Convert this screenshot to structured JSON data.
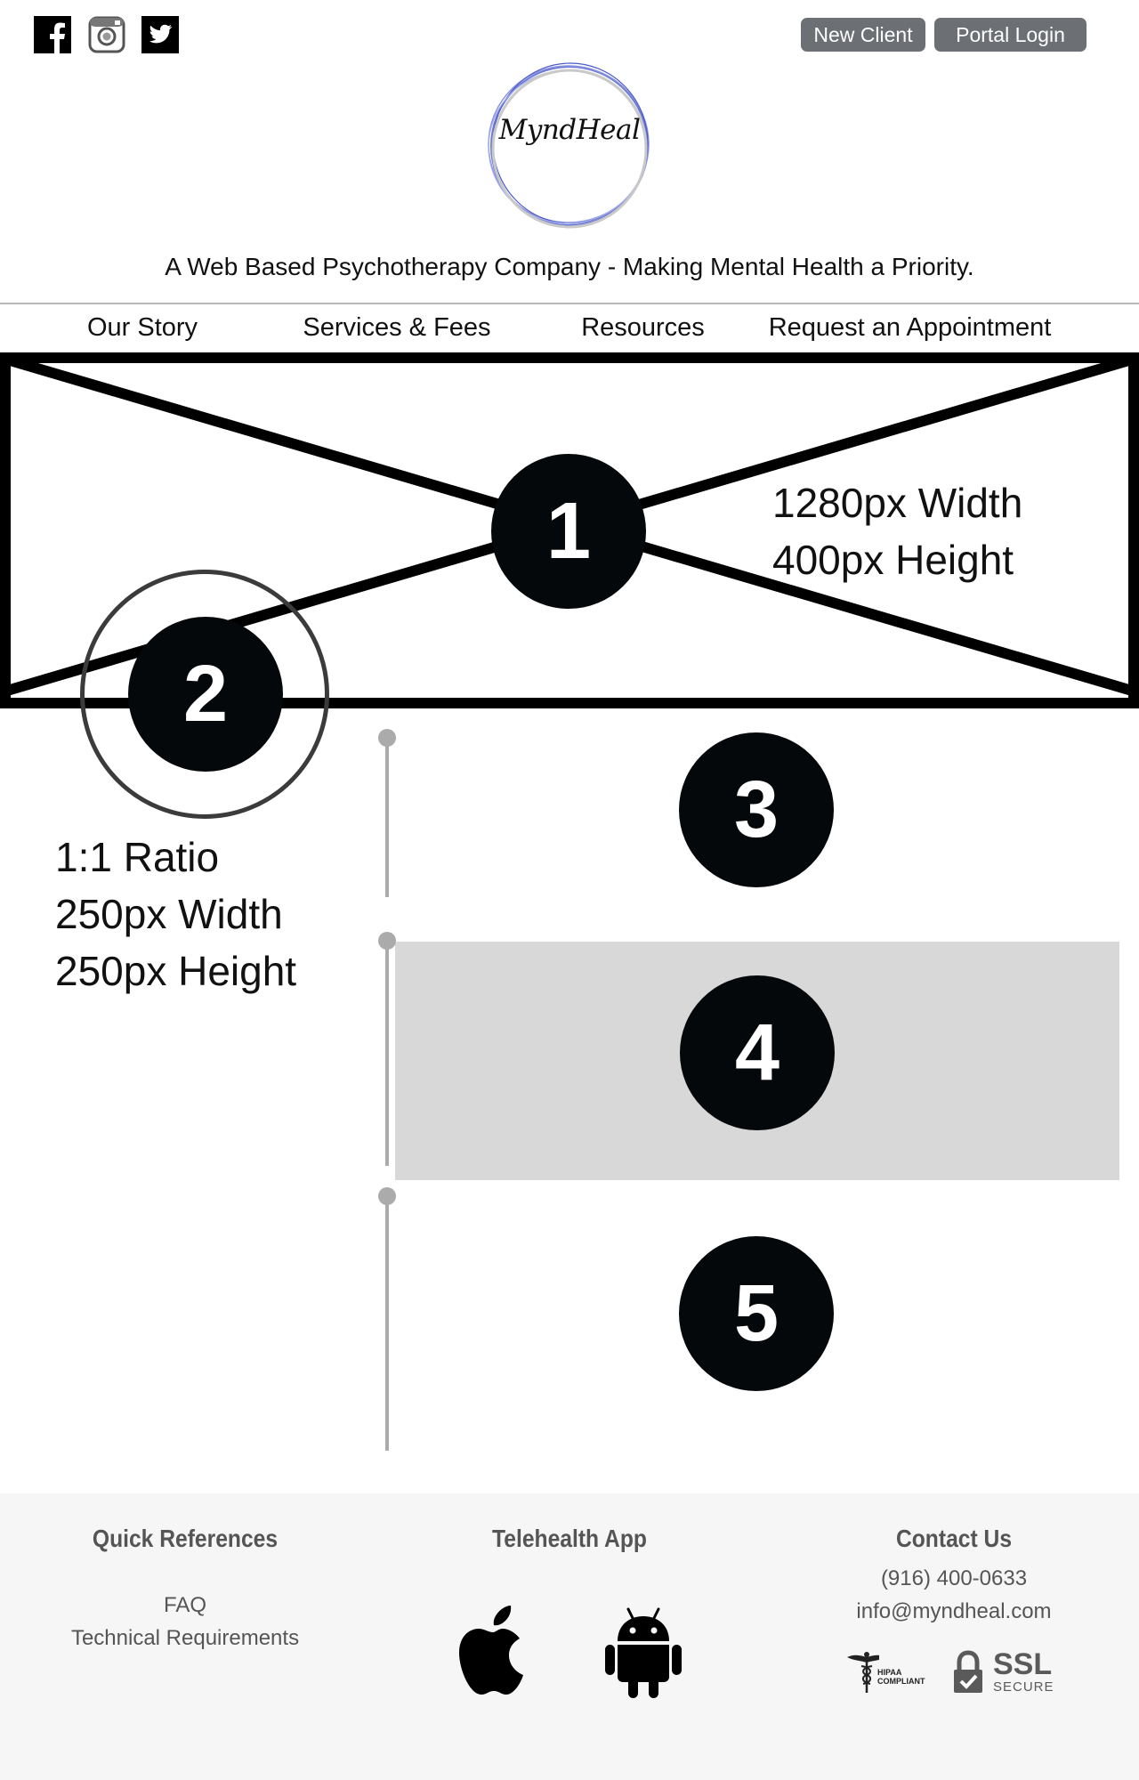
{
  "header": {
    "social": [
      {
        "name": "facebook-icon"
      },
      {
        "name": "instagram-icon"
      },
      {
        "name": "twitter-icon"
      }
    ],
    "new_client_label": "New Client",
    "portal_login_label": "Portal Login",
    "logo_text": "MyndHeal",
    "tagline": "A Web Based Psychotherapy Company - Making Mental Health a Priority."
  },
  "nav": {
    "items": [
      "Our Story",
      "Services & Fees",
      "Resources",
      "Request an Appointment"
    ]
  },
  "hero": {
    "badge": "1",
    "spec_width": "1280px Width",
    "spec_height": "400px Height"
  },
  "profile": {
    "badge": "2",
    "spec_ratio": "1:1 Ratio",
    "spec_width": "250px Width",
    "spec_height": "250px Height"
  },
  "sections": {
    "badges": [
      "3",
      "4",
      "5"
    ]
  },
  "footer": {
    "quick_refs": {
      "heading": "Quick References",
      "links": [
        "FAQ",
        "Technical Requirements"
      ]
    },
    "telehealth": {
      "heading": "Telehealth App",
      "icons": [
        "apple-icon",
        "android-icon"
      ]
    },
    "contact": {
      "heading": "Contact Us",
      "phone": "(916) 400-0633",
      "email": "info@myndheal.com",
      "hipaa_label": "HIPAA",
      "hipaa_sub": "COMPLIANT",
      "ssl_label": "SSL",
      "ssl_sub": "SECURE"
    }
  },
  "colors": {
    "button_bg": "#6c6f73",
    "badge_bg": "#05080a",
    "timeline": "#ababab",
    "highlight_block": "#d8d8d8",
    "footer_bg": "#f6f6f6",
    "logo_ring": "#6b78d6"
  }
}
